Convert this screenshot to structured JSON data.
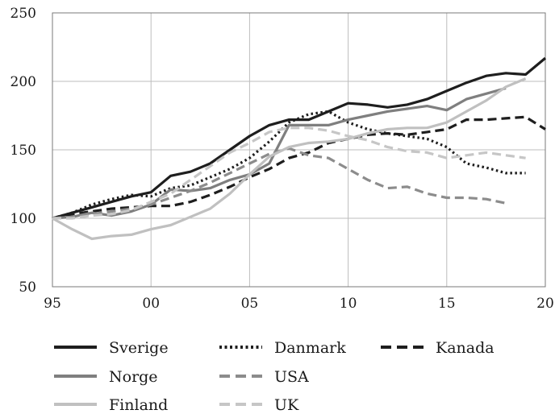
{
  "chart_data": {
    "type": "line",
    "title": "",
    "xlabel": "",
    "ylabel": "",
    "xlim": [
      1995,
      2020
    ],
    "ylim": [
      50,
      250
    ],
    "grid": true,
    "legend_position": "bottom",
    "x_ticks": [
      {
        "value": 1995,
        "label": "95"
      },
      {
        "value": 2000,
        "label": "00"
      },
      {
        "value": 2005,
        "label": "05"
      },
      {
        "value": 2010,
        "label": "10"
      },
      {
        "value": 2015,
        "label": "15"
      },
      {
        "value": 2020,
        "label": "20"
      }
    ],
    "y_ticks": [
      {
        "value": 50,
        "label": "50"
      },
      {
        "value": 100,
        "label": "100"
      },
      {
        "value": 150,
        "label": "150"
      },
      {
        "value": 200,
        "label": "200"
      },
      {
        "value": 250,
        "label": "250"
      }
    ],
    "series": [
      {
        "name": "Sverige",
        "color": "#1e1e1e",
        "style": "solid",
        "points": [
          [
            1995,
            100
          ],
          [
            1996,
            104
          ],
          [
            1997,
            108
          ],
          [
            1998,
            112
          ],
          [
            1999,
            116
          ],
          [
            2000,
            119
          ],
          [
            2001,
            131
          ],
          [
            2002,
            134
          ],
          [
            2003,
            140
          ],
          [
            2004,
            150
          ],
          [
            2005,
            160
          ],
          [
            2006,
            168
          ],
          [
            2007,
            172
          ],
          [
            2008,
            172
          ],
          [
            2009,
            178
          ],
          [
            2010,
            184
          ],
          [
            2011,
            183
          ],
          [
            2012,
            181
          ],
          [
            2013,
            183
          ],
          [
            2014,
            187
          ],
          [
            2015,
            193
          ],
          [
            2016,
            199
          ],
          [
            2017,
            204
          ],
          [
            2018,
            206
          ],
          [
            2019,
            205
          ],
          [
            2020,
            217
          ]
        ]
      },
      {
        "name": "Danmark",
        "color": "#1e1e1e",
        "style": "dotted",
        "points": [
          [
            1995,
            100
          ],
          [
            1996,
            104
          ],
          [
            1997,
            110
          ],
          [
            1998,
            114
          ],
          [
            1999,
            117
          ],
          [
            2000,
            116
          ],
          [
            2001,
            122
          ],
          [
            2002,
            124
          ],
          [
            2003,
            130
          ],
          [
            2004,
            136
          ],
          [
            2005,
            144
          ],
          [
            2006,
            156
          ],
          [
            2007,
            170
          ],
          [
            2008,
            176
          ],
          [
            2009,
            178
          ],
          [
            2010,
            170
          ],
          [
            2011,
            165
          ],
          [
            2012,
            162
          ],
          [
            2013,
            160
          ],
          [
            2014,
            158
          ],
          [
            2015,
            152
          ],
          [
            2016,
            140
          ],
          [
            2017,
            137
          ],
          [
            2018,
            133
          ],
          [
            2019,
            133
          ]
        ]
      },
      {
        "name": "Kanada",
        "color": "#1e1e1e",
        "style": "dashed",
        "points": [
          [
            1995,
            100
          ],
          [
            1996,
            103
          ],
          [
            1997,
            105
          ],
          [
            1998,
            107
          ],
          [
            1999,
            108
          ],
          [
            2000,
            109
          ],
          [
            2001,
            109
          ],
          [
            2002,
            112
          ],
          [
            2003,
            117
          ],
          [
            2004,
            123
          ],
          [
            2005,
            130
          ],
          [
            2006,
            136
          ],
          [
            2007,
            144
          ],
          [
            2008,
            148
          ],
          [
            2009,
            155
          ],
          [
            2010,
            158
          ],
          [
            2011,
            161
          ],
          [
            2012,
            162
          ],
          [
            2013,
            161
          ],
          [
            2014,
            163
          ],
          [
            2015,
            165
          ],
          [
            2016,
            172
          ],
          [
            2017,
            172
          ],
          [
            2018,
            173
          ],
          [
            2019,
            174
          ],
          [
            2020,
            165
          ]
        ]
      },
      {
        "name": "Norge",
        "color": "#7f7f7f",
        "style": "solid",
        "points": [
          [
            1995,
            100
          ],
          [
            1996,
            101
          ],
          [
            1997,
            104
          ],
          [
            1998,
            102
          ],
          [
            1999,
            105
          ],
          [
            2000,
            110
          ],
          [
            2001,
            121
          ],
          [
            2002,
            120
          ],
          [
            2003,
            122
          ],
          [
            2004,
            128
          ],
          [
            2005,
            132
          ],
          [
            2006,
            140
          ],
          [
            2007,
            168
          ],
          [
            2008,
            168
          ],
          [
            2009,
            168
          ],
          [
            2010,
            172
          ],
          [
            2011,
            175
          ],
          [
            2012,
            178
          ],
          [
            2013,
            180
          ],
          [
            2014,
            182
          ],
          [
            2015,
            179
          ],
          [
            2016,
            187
          ],
          [
            2017,
            191
          ],
          [
            2018,
            195
          ]
        ]
      },
      {
        "name": "USA",
        "color": "#8c8c8c",
        "style": "dashed",
        "points": [
          [
            1995,
            100
          ],
          [
            1996,
            101
          ],
          [
            1997,
            103
          ],
          [
            1998,
            105
          ],
          [
            1999,
            107
          ],
          [
            2000,
            110
          ],
          [
            2001,
            115
          ],
          [
            2002,
            120
          ],
          [
            2003,
            126
          ],
          [
            2004,
            133
          ],
          [
            2005,
            140
          ],
          [
            2006,
            147
          ],
          [
            2007,
            151
          ],
          [
            2008,
            146
          ],
          [
            2009,
            144
          ],
          [
            2010,
            136
          ],
          [
            2011,
            128
          ],
          [
            2012,
            122
          ],
          [
            2013,
            123
          ],
          [
            2014,
            118
          ],
          [
            2015,
            115
          ],
          [
            2016,
            115
          ],
          [
            2017,
            114
          ],
          [
            2018,
            111
          ]
        ]
      },
      {
        "name": "Finland",
        "color": "#c0c0c0",
        "style": "solid",
        "points": [
          [
            1995,
            100
          ],
          [
            1996,
            92
          ],
          [
            1997,
            85
          ],
          [
            1998,
            87
          ],
          [
            1999,
            88
          ],
          [
            2000,
            92
          ],
          [
            2001,
            95
          ],
          [
            2002,
            101
          ],
          [
            2003,
            107
          ],
          [
            2004,
            118
          ],
          [
            2005,
            132
          ],
          [
            2006,
            145
          ],
          [
            2007,
            152
          ],
          [
            2008,
            155
          ],
          [
            2009,
            156
          ],
          [
            2010,
            158
          ],
          [
            2011,
            162
          ],
          [
            2012,
            165
          ],
          [
            2013,
            166
          ],
          [
            2014,
            166
          ],
          [
            2015,
            170
          ],
          [
            2016,
            178
          ],
          [
            2017,
            186
          ],
          [
            2018,
            196
          ],
          [
            2019,
            202
          ]
        ]
      },
      {
        "name": "UK",
        "color": "#c6c6c6",
        "style": "dashed",
        "points": [
          [
            1995,
            100
          ],
          [
            1996,
            100
          ],
          [
            1997,
            102
          ],
          [
            1998,
            103
          ],
          [
            1999,
            106
          ],
          [
            2000,
            112
          ],
          [
            2001,
            118
          ],
          [
            2002,
            128
          ],
          [
            2003,
            138
          ],
          [
            2004,
            148
          ],
          [
            2005,
            155
          ],
          [
            2006,
            163
          ],
          [
            2007,
            166
          ],
          [
            2008,
            166
          ],
          [
            2009,
            164
          ],
          [
            2010,
            160
          ],
          [
            2011,
            157
          ],
          [
            2012,
            152
          ],
          [
            2013,
            149
          ],
          [
            2014,
            148
          ],
          [
            2015,
            144
          ],
          [
            2016,
            146
          ],
          [
            2017,
            148
          ],
          [
            2018,
            146
          ],
          [
            2019,
            144
          ]
        ]
      }
    ]
  }
}
